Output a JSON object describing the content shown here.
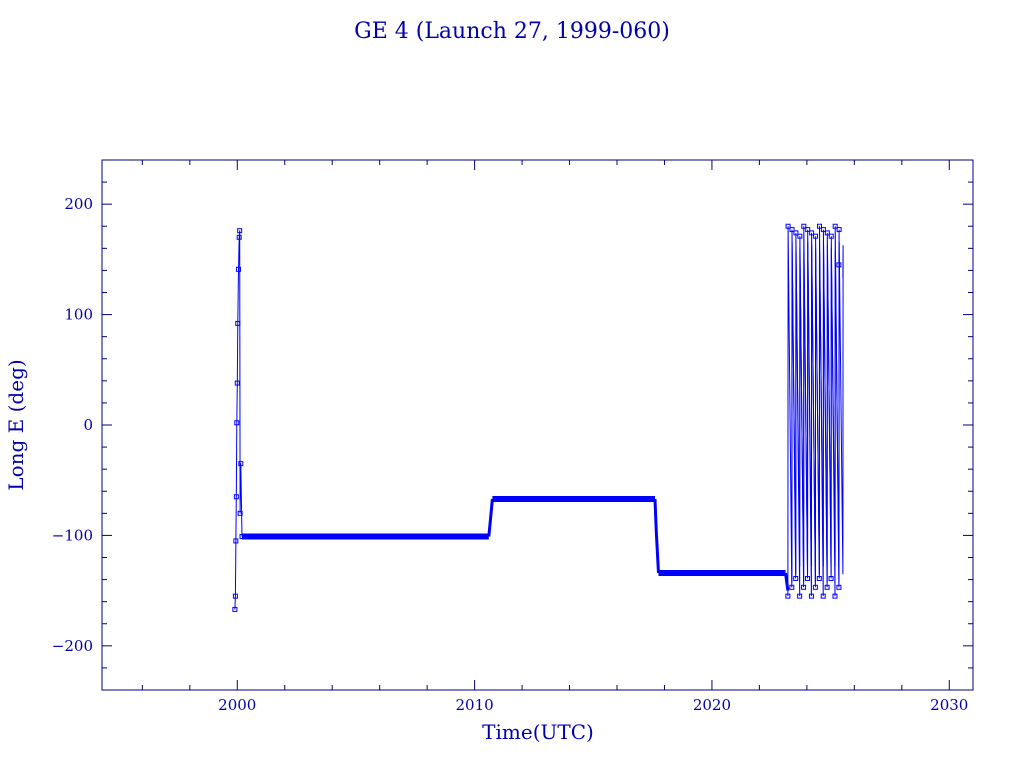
{
  "chart_data": {
    "type": "line",
    "title": "GE 4 (Launch 27, 1999-060)",
    "xlabel": "Time(UTC)",
    "ylabel": "Long E (deg)",
    "xlim": [
      1994.3,
      2031
    ],
    "ylim": [
      -240,
      240
    ],
    "xticks": [
      2000,
      2010,
      2020,
      2030
    ],
    "xtick_labels": [
      "2000",
      "2010",
      "2020",
      "2030"
    ],
    "yticks": [
      200,
      100,
      0,
      -100,
      -200
    ],
    "ytick_labels": [
      "200",
      "100",
      "0",
      "−100",
      "−200"
    ],
    "grid": false,
    "legend": "none",
    "colors": {
      "axis": "#000080",
      "series": "#0000ff",
      "text": "#0000aa"
    },
    "series": [
      {
        "segments": [
          {
            "kind": "initial-drift",
            "x": [
              1999.9,
              1999.92,
              1999.94,
              1999.96,
              1999.98,
              2000.0,
              2000.02,
              2000.05,
              2000.08,
              2000.1,
              2000.12,
              2000.15,
              2000.2
            ],
            "y": [
              -167,
              -155,
              -105,
              -65,
              2,
              38,
              92,
              141,
              170,
              176,
              -80,
              -35,
              -101
            ]
          },
          {
            "kind": "station",
            "x": [
              2000.2,
              2010.6
            ],
            "y": [
              -101,
              -101
            ]
          },
          {
            "kind": "transition",
            "x": [
              2010.6,
              2010.65,
              2010.75
            ],
            "y": [
              -101,
              -90,
              -67
            ]
          },
          {
            "kind": "station",
            "x": [
              2010.75,
              2017.6
            ],
            "y": [
              -67,
              -67
            ]
          },
          {
            "kind": "transition",
            "x": [
              2017.6,
              2017.65,
              2017.75
            ],
            "y": [
              -67,
              -95,
              -134
            ]
          },
          {
            "kind": "station",
            "x": [
              2017.75,
              2023.1
            ],
            "y": [
              -134,
              -134
            ]
          },
          {
            "kind": "transition",
            "x": [
              2023.1,
              2023.2
            ],
            "y": [
              -134,
              -150
            ]
          },
          {
            "kind": "drift-wrapping",
            "x_start": 2023.2,
            "x_end": 2025.35,
            "cycles": 13,
            "y_range": [
              -180,
              180
            ],
            "final_value": 145
          }
        ]
      }
    ]
  }
}
